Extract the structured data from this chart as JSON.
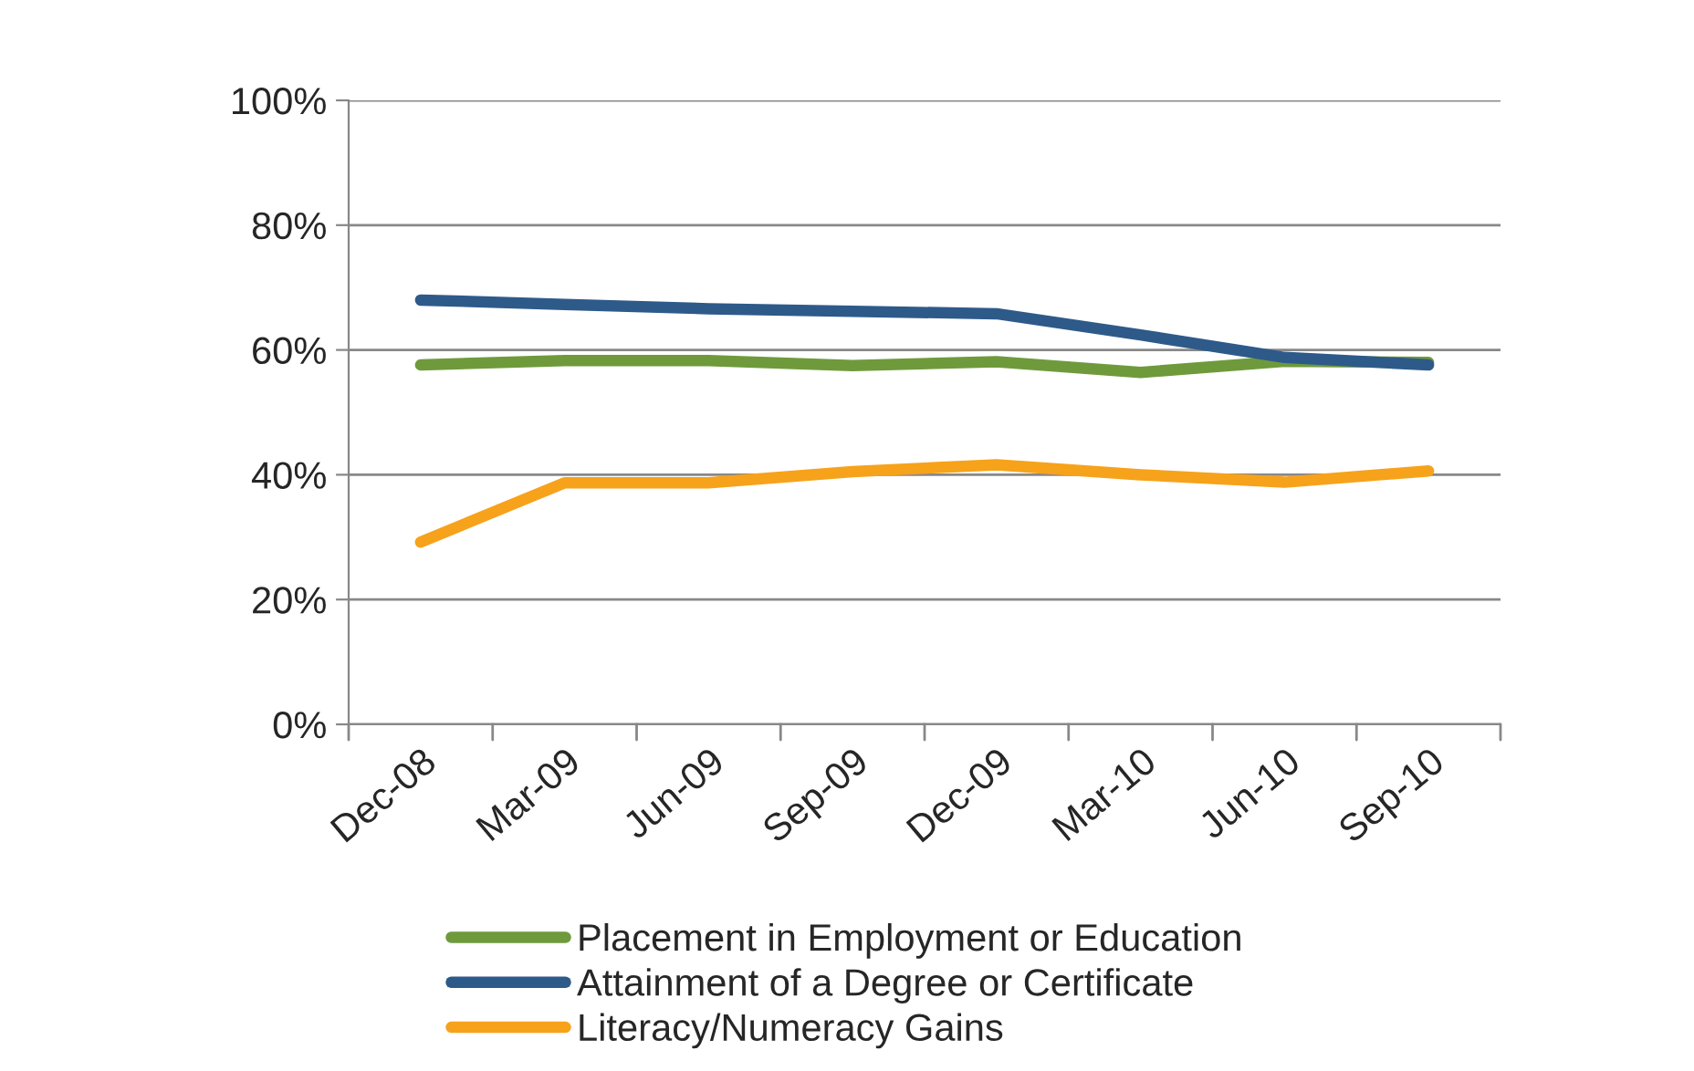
{
  "chart_data": {
    "type": "line",
    "categories": [
      "Dec-08",
      "Mar-09",
      "Jun-09",
      "Sep-09",
      "Dec-09",
      "Mar-10",
      "Jun-10",
      "Sep-10"
    ],
    "series": [
      {
        "name": "Placement in Employment or Education",
        "color": "#6f9a3c",
        "values": [
          57.6,
          58.3,
          58.3,
          57.5,
          58.1,
          56.4,
          58.2,
          58.0
        ]
      },
      {
        "name": "Attainment of a Degree or Certificate",
        "color": "#2e5a8a",
        "values": [
          68.0,
          67.3,
          66.6,
          66.2,
          65.8,
          62.4,
          58.8,
          57.6
        ]
      },
      {
        "name": "Literacy/Numeracy Gains",
        "color": "#f7a21b",
        "values": [
          29.2,
          38.7,
          38.7,
          40.5,
          41.6,
          40.0,
          38.8,
          40.6
        ]
      }
    ],
    "ylim": [
      0,
      100
    ],
    "yticks": [
      {
        "value": 0,
        "label": "0%"
      },
      {
        "value": 20,
        "label": "20%"
      },
      {
        "value": 40,
        "label": "40%"
      },
      {
        "value": 60,
        "label": "60%"
      },
      {
        "value": 80,
        "label": "80%"
      },
      {
        "value": 100,
        "label": "100%"
      }
    ],
    "grid": "y",
    "legend": "bottom",
    "line_style": "solid",
    "marker": "none"
  }
}
